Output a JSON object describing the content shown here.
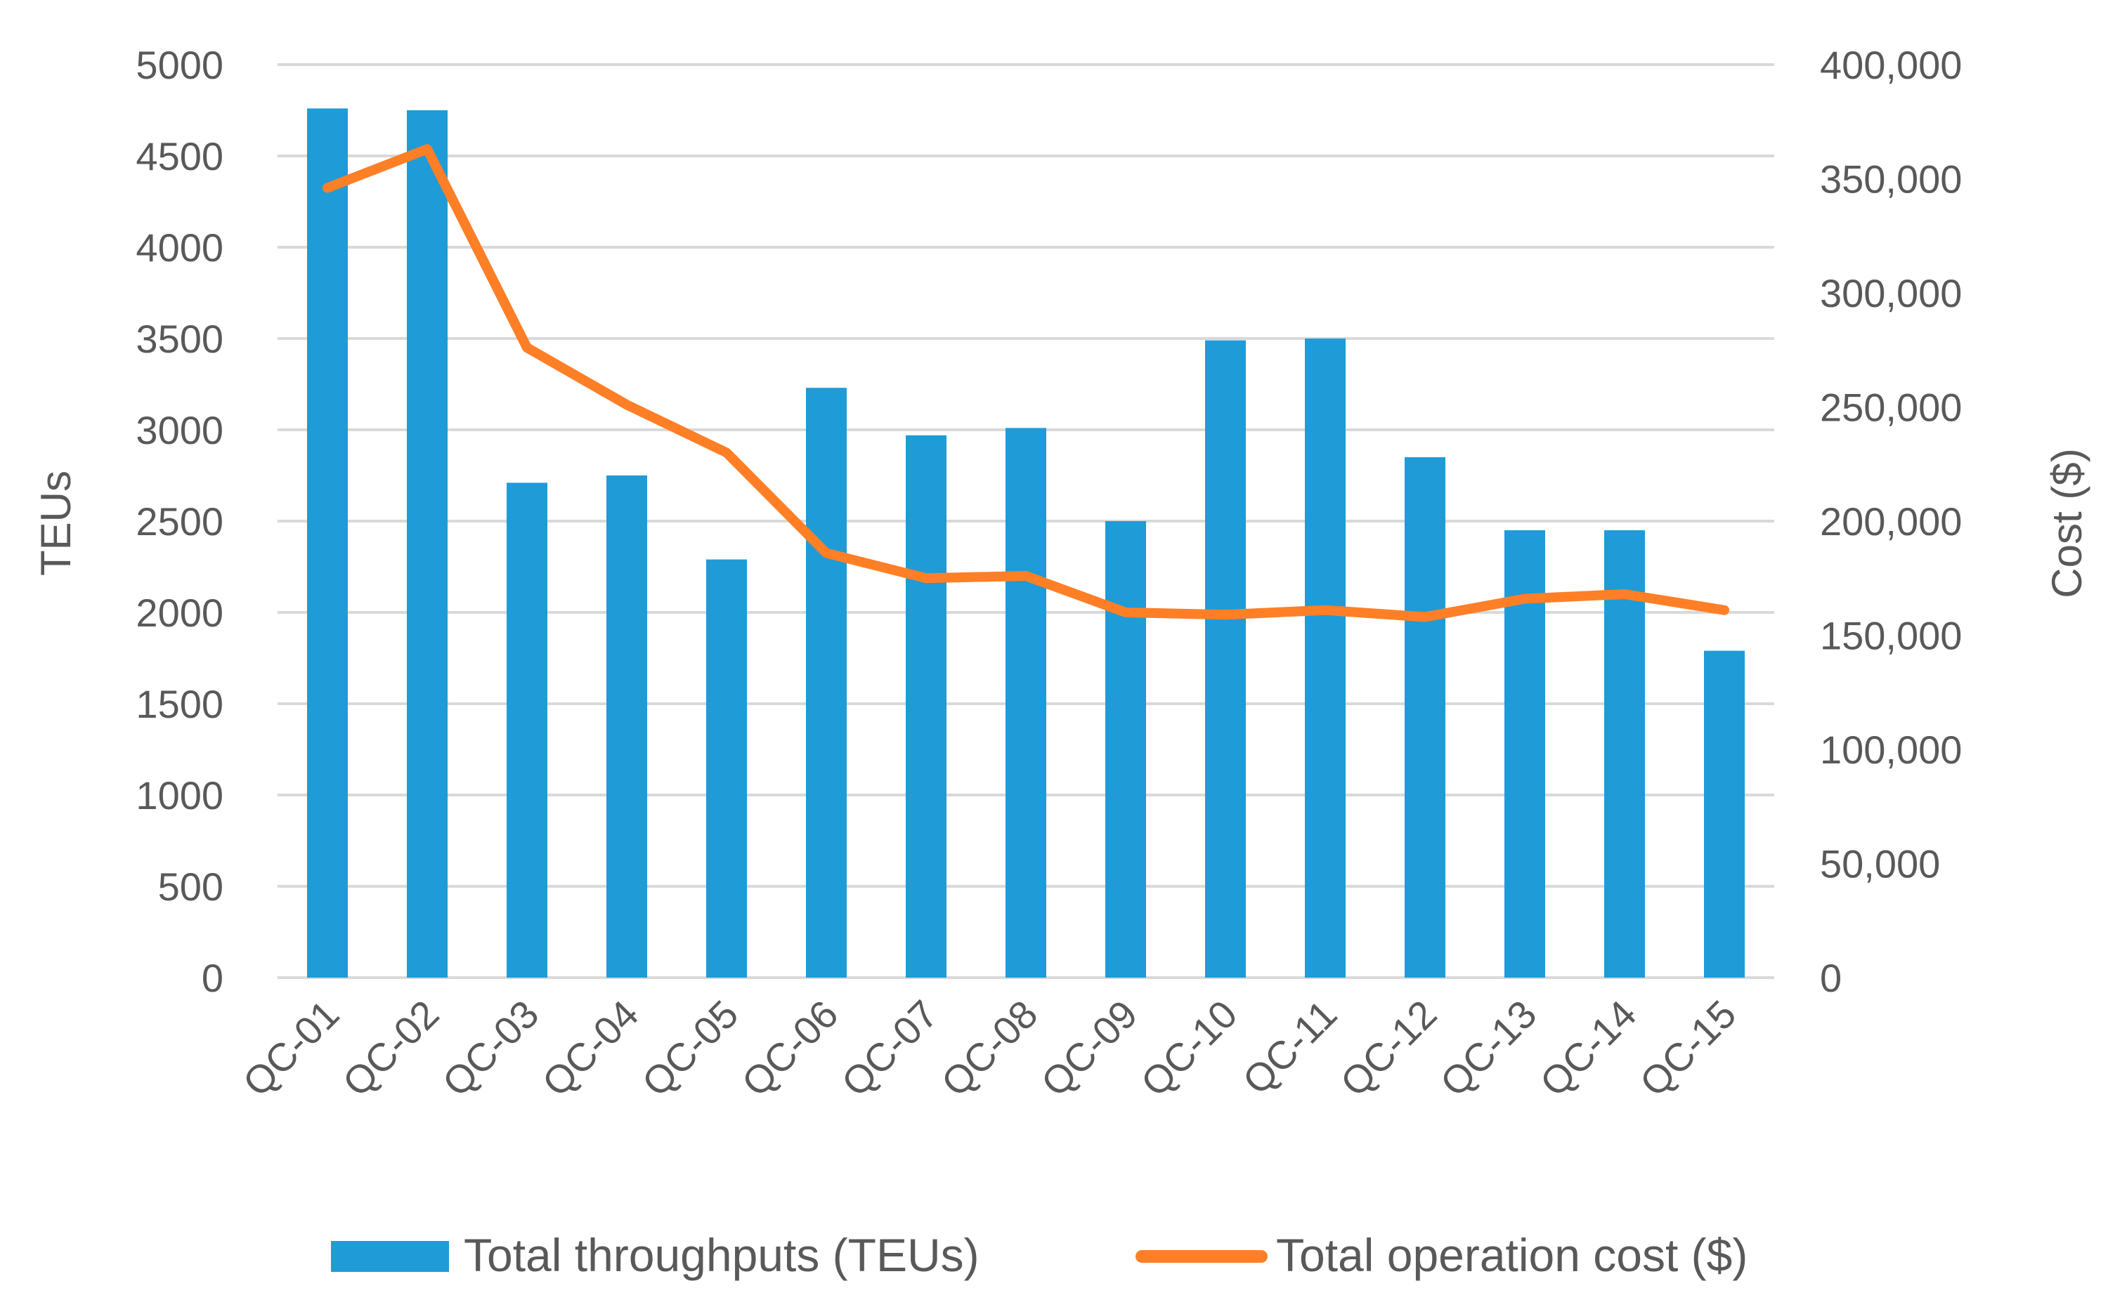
{
  "chart_data": {
    "type": "bar+line",
    "categories": [
      "QC-01",
      "QC-02",
      "QC-03",
      "QC-04",
      "QC-05",
      "QC-06",
      "QC-07",
      "QC-08",
      "QC-09",
      "QC-10",
      "QC-11",
      "QC-12",
      "QC-13",
      "QC-14",
      "QC-15"
    ],
    "series": [
      {
        "name": "Total throughputs (TEUs)",
        "type": "bar",
        "axis": "left",
        "color": "#1F9BD7",
        "values": [
          4760,
          4750,
          2710,
          2750,
          2290,
          3230,
          2970,
          3010,
          2500,
          3490,
          3500,
          2850,
          2450,
          2450,
          1790
        ]
      },
      {
        "name": "Total operation cost ($)",
        "type": "line",
        "axis": "right",
        "color": "#FF7F27",
        "values": [
          346000,
          363000,
          276000,
          251000,
          230000,
          186000,
          175000,
          176000,
          160000,
          159000,
          161000,
          158000,
          166000,
          168000,
          161000
        ]
      }
    ],
    "left_axis": {
      "title": "TEUs",
      "min": 0,
      "max": 5000,
      "step": 500,
      "tick_labels": [
        "0",
        "500",
        "1000",
        "1500",
        "2000",
        "2500",
        "3000",
        "3500",
        "4000",
        "4500",
        "5000"
      ]
    },
    "right_axis": {
      "title": "Cost ($)",
      "min": 0,
      "max": 400000,
      "step": 50000,
      "tick_labels": [
        "0",
        "50,000",
        "100,000",
        "150,000",
        "200,000",
        "250,000",
        "300,000",
        "350,000",
        "400,000"
      ]
    },
    "gridlines": true,
    "legend_position": "bottom"
  }
}
